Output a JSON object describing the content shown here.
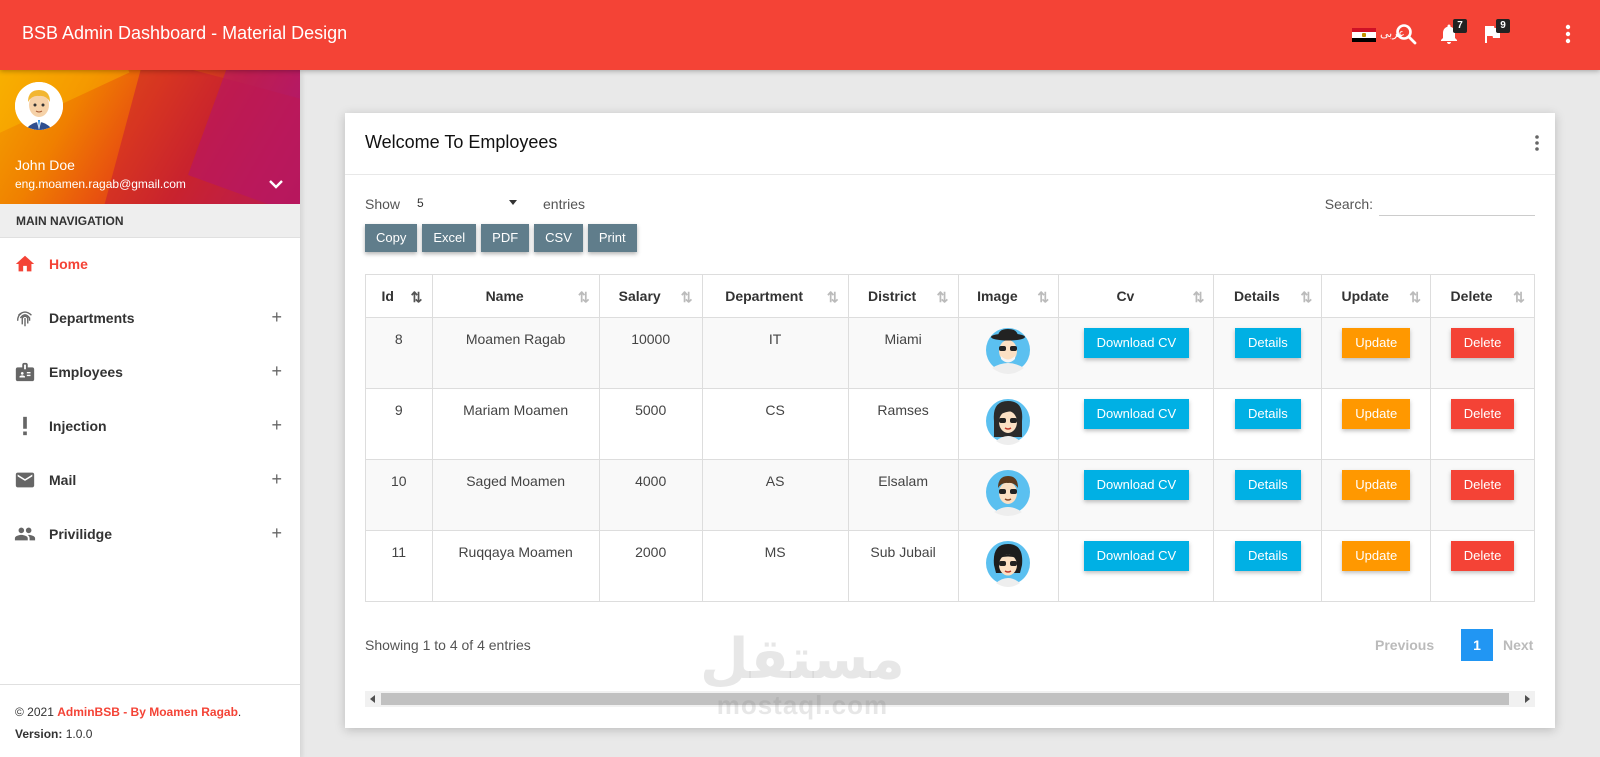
{
  "topbar": {
    "title": "BSB Admin Dashboard - Material Design",
    "language_label": "عربى",
    "notifications_count": "7",
    "flags_count": "9",
    "colors": {
      "primary": "#f44336"
    }
  },
  "sidebar": {
    "user": {
      "name": "John Doe",
      "email": "eng.moamen.ragab@gmail.com"
    },
    "nav_header": "MAIN NAVIGATION",
    "items": [
      {
        "label": "Home",
        "icon": "home-icon",
        "active": true
      },
      {
        "label": "Departments",
        "icon": "fingerprint-icon",
        "expand": "+"
      },
      {
        "label": "Employees",
        "icon": "badge-icon",
        "expand": "+"
      },
      {
        "label": "Injection",
        "icon": "exclamation-icon",
        "expand": "+"
      },
      {
        "label": "Mail",
        "icon": "mail-icon",
        "expand": "+"
      },
      {
        "label": "Privilidge",
        "icon": "people-icon",
        "expand": "+"
      }
    ],
    "footer": {
      "copyright": "© 2021 ",
      "brand": "AdminBSB - By Moamen Ragab",
      "period": ".",
      "version_label": "Version:",
      "version": " 1.0.0"
    }
  },
  "card": {
    "title": "Welcome To Employees",
    "show_label": "Show",
    "entries_value": "5",
    "entries_label": "entries",
    "search_label": "Search:",
    "export_buttons": [
      "Copy",
      "Excel",
      "PDF",
      "CSV",
      "Print"
    ],
    "columns": [
      "Id",
      "Name",
      "Salary",
      "Department",
      "District",
      "Image",
      "Cv",
      "Details",
      "Update",
      "Delete"
    ],
    "rows": [
      {
        "id": "8",
        "name": "Moamen Ragab",
        "salary": "10000",
        "department": "IT",
        "district": "Miami"
      },
      {
        "id": "9",
        "name": "Mariam Moamen",
        "salary": "5000",
        "department": "CS",
        "district": "Ramses"
      },
      {
        "id": "10",
        "name": "Saged Moamen",
        "salary": "4000",
        "department": "AS",
        "district": "Elsalam"
      },
      {
        "id": "11",
        "name": "Ruqqaya Moamen",
        "salary": "2000",
        "department": "MS",
        "district": "Sub Jubail"
      }
    ],
    "row_actions": {
      "cv": "Download CV",
      "details": "Details",
      "update": "Update",
      "delete": "Delete"
    },
    "info": "Showing 1 to 4 of 4 entries",
    "pager": {
      "previous": "Previous",
      "current": "1",
      "next": "Next"
    }
  },
  "watermark": {
    "arabic": "مستقل",
    "latin": "mostaql.com"
  }
}
